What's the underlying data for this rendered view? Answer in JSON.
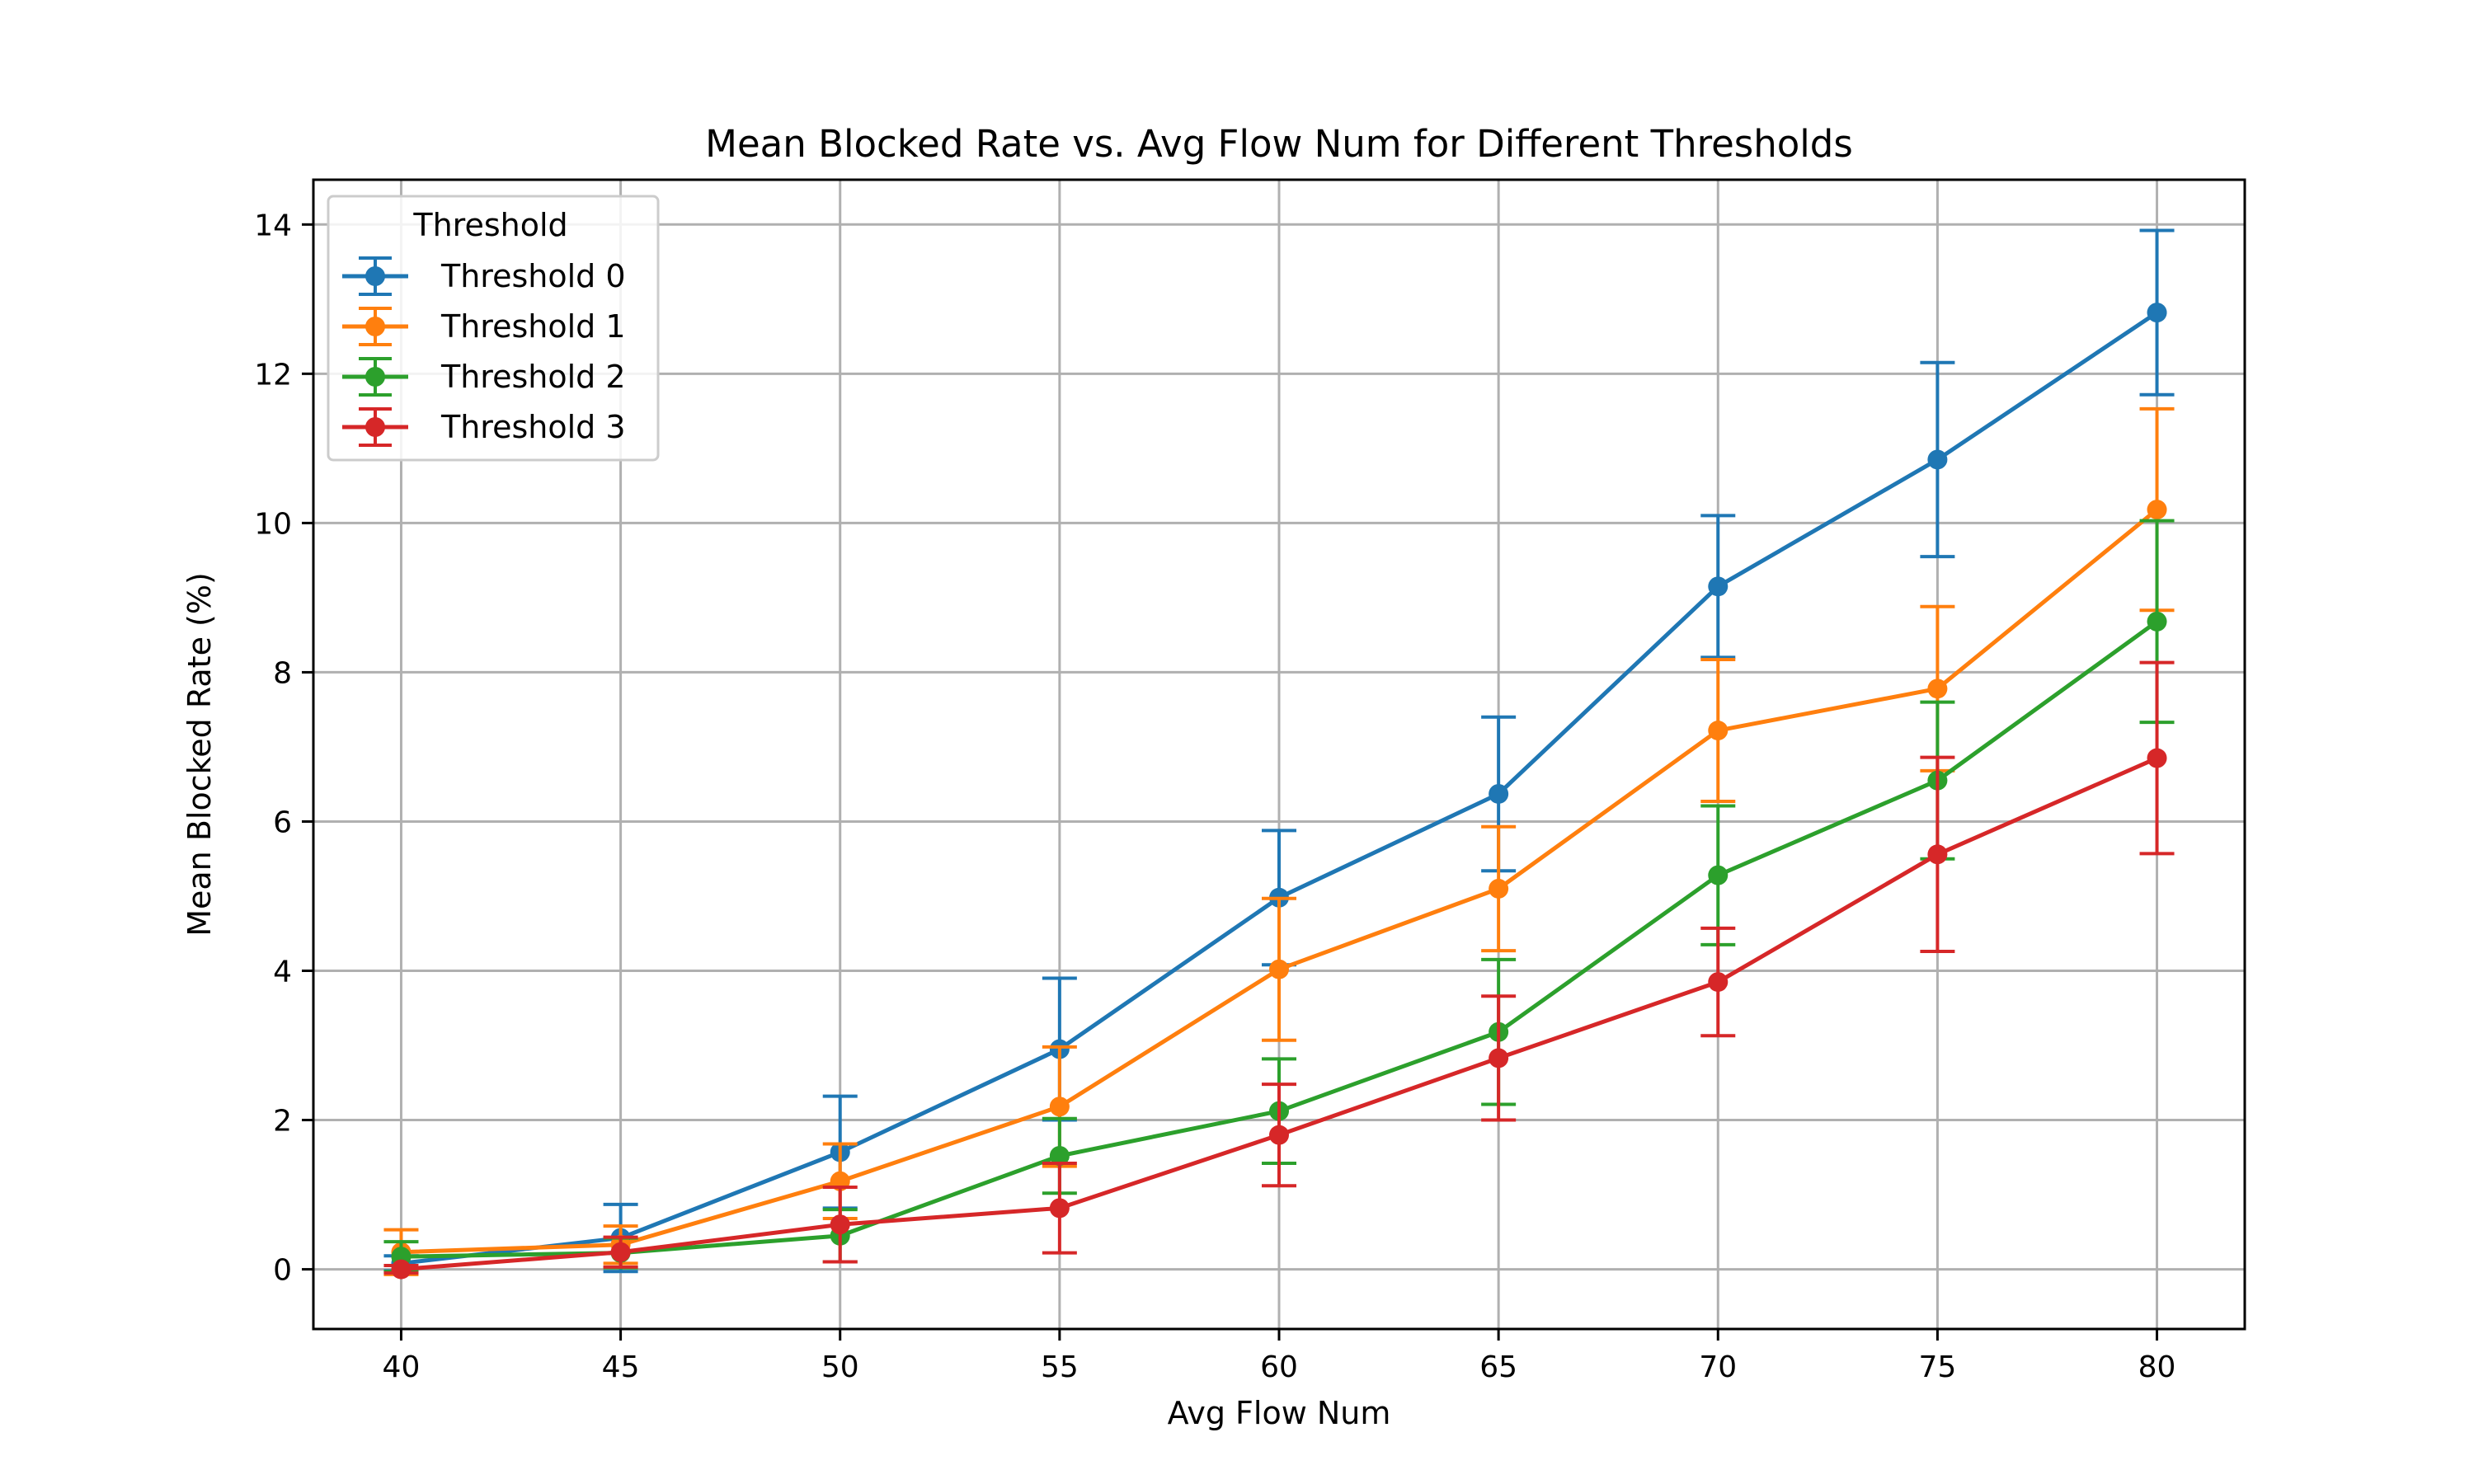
{
  "chart_data": {
    "type": "line",
    "title": "Mean Blocked Rate vs. Avg Flow Num for Different Thresholds",
    "xlabel": "Avg Flow Num",
    "ylabel": "Mean Blocked Rate (%)",
    "x": [
      40,
      45,
      50,
      55,
      60,
      65,
      70,
      75,
      80
    ],
    "xticks": [
      "40",
      "45",
      "50",
      "55",
      "60",
      "65",
      "70",
      "75",
      "80"
    ],
    "yticks": [
      "0",
      "2",
      "4",
      "6",
      "8",
      "10",
      "12",
      "14"
    ],
    "xlim": [
      38,
      82
    ],
    "ylim": [
      -0.8,
      14.6
    ],
    "grid": true,
    "error_bars": true,
    "legend": {
      "title": "Threshold",
      "placement": "top-left"
    },
    "series": [
      {
        "name": "Threshold 0",
        "color": "#1f77b4",
        "values": [
          0.08,
          0.42,
          1.57,
          2.95,
          4.98,
          6.37,
          9.15,
          10.85,
          12.82
        ],
        "errors": [
          0.1,
          0.45,
          0.75,
          0.95,
          0.9,
          1.03,
          0.95,
          1.3,
          1.1
        ]
      },
      {
        "name": "Threshold 1",
        "color": "#ff7f0e",
        "values": [
          0.23,
          0.33,
          1.18,
          2.18,
          4.02,
          5.1,
          7.22,
          7.78,
          10.18
        ],
        "errors": [
          0.3,
          0.25,
          0.5,
          0.8,
          0.95,
          0.83,
          0.95,
          1.1,
          1.35
        ]
      },
      {
        "name": "Threshold 2",
        "color": "#2ca02c",
        "values": [
          0.17,
          0.22,
          0.45,
          1.52,
          2.12,
          3.18,
          5.28,
          6.55,
          8.68
        ],
        "errors": [
          0.2,
          0.2,
          0.35,
          0.5,
          0.7,
          0.97,
          0.93,
          1.05,
          1.35
        ]
      },
      {
        "name": "Threshold 3",
        "color": "#d62728",
        "values": [
          0.0,
          0.23,
          0.6,
          0.82,
          1.8,
          2.83,
          3.85,
          5.56,
          6.85
        ],
        "errors": [
          0.05,
          0.2,
          0.5,
          0.6,
          0.68,
          0.83,
          0.72,
          1.3,
          1.28
        ]
      }
    ]
  }
}
